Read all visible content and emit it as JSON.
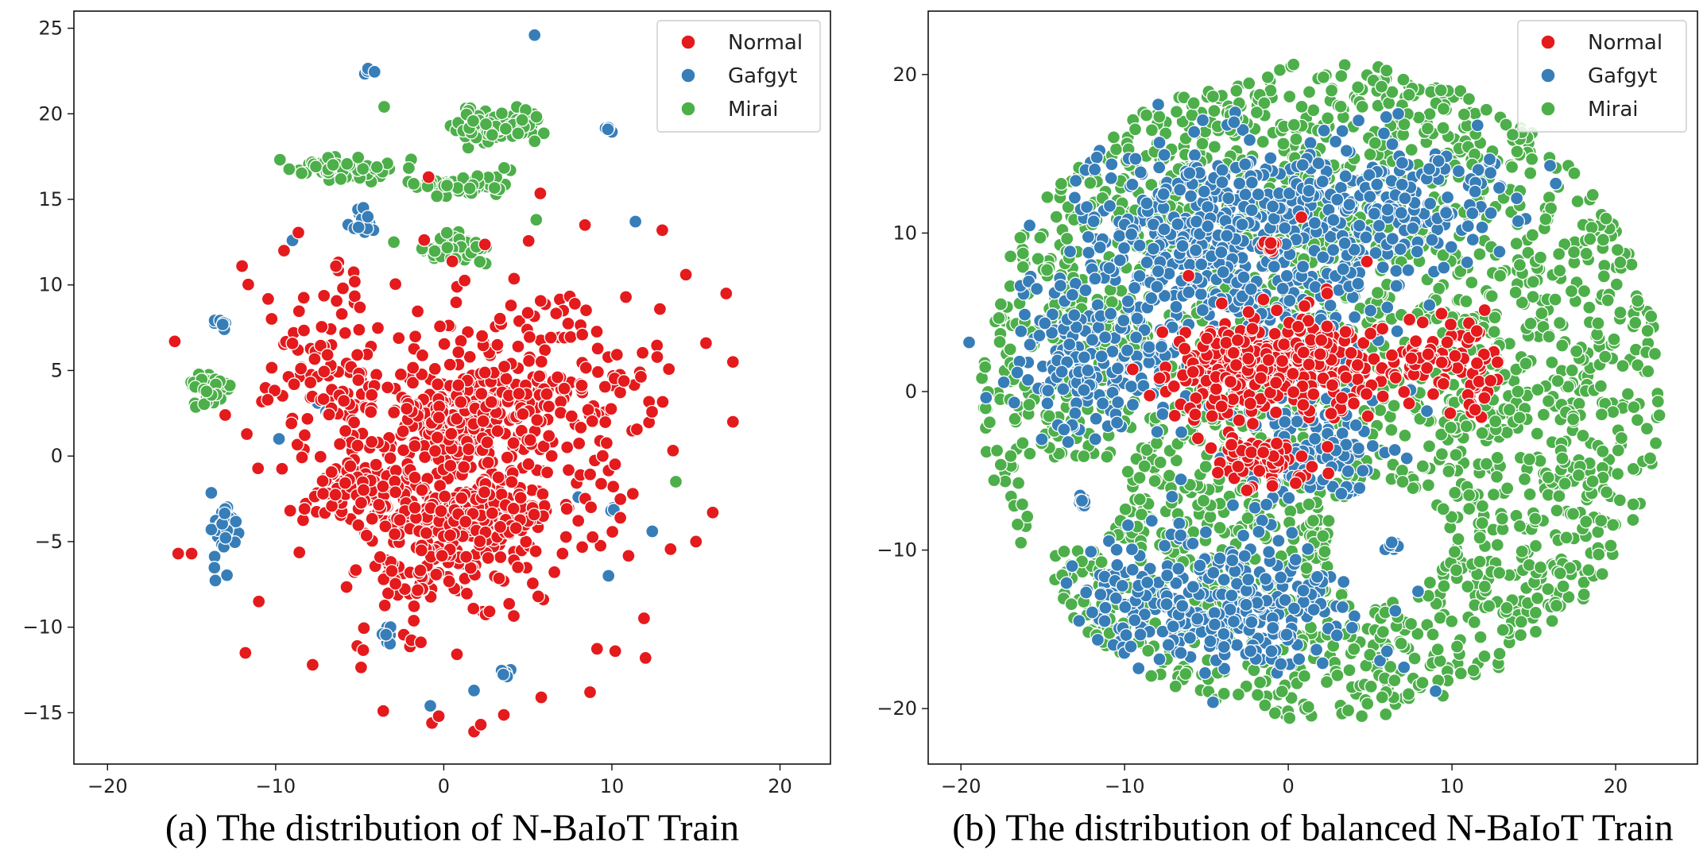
{
  "colors": {
    "Normal": "#e41a1c",
    "Gafgyt": "#377eb8",
    "Mirai": "#4daf4a"
  },
  "chart_data": [
    {
      "type": "scatter",
      "title": "",
      "caption": "(a) The distribution of N-BaIoT Train",
      "xlabel": "",
      "ylabel": "",
      "xlim": [
        -22,
        23
      ],
      "ylim": [
        -18,
        26
      ],
      "xticks": [
        -20,
        -10,
        0,
        10,
        20
      ],
      "yticks": [
        -15,
        -10,
        -5,
        0,
        5,
        10,
        15,
        20,
        25
      ],
      "legend": {
        "position": "top-right",
        "entries": [
          "Normal",
          "Gafgyt",
          "Mirai"
        ]
      },
      "seed": 11,
      "series": [
        {
          "name": "Mirai",
          "color": "#4daf4a",
          "clusters": [
            {
              "cx": 3.0,
              "cy": 19.3,
              "rx": 2.2,
              "ry": 0.9,
              "n": 130
            },
            {
              "cx": -6.0,
              "cy": 16.8,
              "rx": 2.8,
              "ry": 0.6,
              "n": 70
            },
            {
              "cx": 1.0,
              "cy": 15.8,
              "rx": 2.5,
              "ry": 0.6,
              "n": 70
            },
            {
              "cx": 0.5,
              "cy": 12.0,
              "rx": 2.0,
              "ry": 0.7,
              "n": 70
            },
            {
              "cx": -14.0,
              "cy": 4.0,
              "rx": 1.0,
              "ry": 1.0,
              "n": 45
            },
            {
              "cx": -3.6,
              "cy": 20.4,
              "rx": 0.1,
              "ry": 0.1,
              "n": 1
            },
            {
              "cx": 5.5,
              "cy": 13.8,
              "rx": 0.1,
              "ry": 0.1,
              "n": 1
            },
            {
              "cx": 13.8,
              "cy": -1.5,
              "rx": 0.1,
              "ry": 0.1,
              "n": 1
            },
            {
              "cx": 6.0,
              "cy": -0.9,
              "rx": 0.1,
              "ry": 0.1,
              "n": 1
            }
          ],
          "points": []
        },
        {
          "name": "Gafgyt",
          "color": "#377eb8",
          "clusters": [
            {
              "cx": -4.5,
              "cy": 22.5,
              "rx": 0.3,
              "ry": 0.2,
              "n": 5
            },
            {
              "cx": 9.8,
              "cy": 19.2,
              "rx": 0.3,
              "ry": 0.2,
              "n": 5
            },
            {
              "cx": -5.0,
              "cy": 13.8,
              "rx": 0.8,
              "ry": 0.8,
              "n": 16
            },
            {
              "cx": -13.3,
              "cy": 7.8,
              "rx": 0.6,
              "ry": 0.3,
              "n": 7
            },
            {
              "cx": -13.0,
              "cy": -4.0,
              "rx": 0.8,
              "ry": 2.7,
              "n": 30
            },
            {
              "cx": -3.3,
              "cy": -10.6,
              "rx": 0.5,
              "ry": 0.6,
              "n": 8
            },
            {
              "cx": 3.8,
              "cy": -12.6,
              "rx": 0.6,
              "ry": 0.3,
              "n": 6
            },
            {
              "cx": 10.0,
              "cy": -3.0,
              "rx": 0.3,
              "ry": 0.5,
              "n": 3
            }
          ],
          "points": [
            {
              "x": 5.4,
              "y": 24.6
            },
            {
              "x": 11.4,
              "y": 13.7
            },
            {
              "x": -9.0,
              "y": 12.6
            },
            {
              "x": -7.5,
              "y": 3.1
            },
            {
              "x": -7.0,
              "y": 2.6
            },
            {
              "x": -9.8,
              "y": 1.0
            },
            {
              "x": 1.8,
              "y": -13.7
            },
            {
              "x": -0.8,
              "y": -14.6
            },
            {
              "x": 12.4,
              "y": -4.4
            },
            {
              "x": 2.8,
              "y": -1.0
            },
            {
              "x": 9.8,
              "y": -7.0
            },
            {
              "x": 8.0,
              "y": -2.4
            }
          ]
        },
        {
          "name": "Normal",
          "color": "#e41a1c",
          "clusters": [
            {
              "cx": 1.0,
              "cy": 0.5,
              "rx": 9.5,
              "ry": 10.0,
              "n": 420
            },
            {
              "cx": 0.6,
              "cy": 2.0,
              "rx": 2.6,
              "ry": 1.7,
              "n": 190
            },
            {
              "cx": 1.0,
              "cy": -3.5,
              "rx": 5.0,
              "ry": 1.6,
              "n": 190
            },
            {
              "cx": 4.0,
              "cy": 3.5,
              "rx": 2.6,
              "ry": 2.0,
              "n": 70
            },
            {
              "cx": -5.0,
              "cy": -2.0,
              "rx": 3.0,
              "ry": 1.6,
              "n": 80
            },
            {
              "cx": -1.0,
              "cy": -6.5,
              "rx": 4.5,
              "ry": 1.8,
              "n": 60
            },
            {
              "cx": 9.0,
              "cy": 4.0,
              "rx": 5.5,
              "ry": 6.0,
              "n": 70
            },
            {
              "cx": -7.0,
              "cy": 5.0,
              "rx": 4.0,
              "ry": 6.0,
              "n": 90
            }
          ],
          "points": [
            {
              "x": -16.0,
              "y": 6.7
            },
            {
              "x": -15.8,
              "y": -5.7
            },
            {
              "x": -15.0,
              "y": -5.7
            },
            {
              "x": 17.2,
              "y": 5.5
            },
            {
              "x": 17.2,
              "y": 2.0
            },
            {
              "x": 16.8,
              "y": 9.5
            },
            {
              "x": 16.0,
              "y": -3.3
            },
            {
              "x": 15.6,
              "y": 6.6
            },
            {
              "x": 1.8,
              "y": -16.1
            },
            {
              "x": 2.2,
              "y": -15.7
            },
            {
              "x": -0.7,
              "y": -15.6
            },
            {
              "x": -0.3,
              "y": -15.2
            },
            {
              "x": -3.6,
              "y": -14.9
            },
            {
              "x": 5.8,
              "y": -14.1
            },
            {
              "x": 8.7,
              "y": -13.8
            },
            {
              "x": -12.0,
              "y": 11.1
            },
            {
              "x": 12.0,
              "y": -11.8
            },
            {
              "x": -11.8,
              "y": -11.5
            },
            {
              "x": 14.4,
              "y": 10.6
            },
            {
              "x": 15.0,
              "y": -5.0
            },
            {
              "x": -13.0,
              "y": 2.4
            },
            {
              "x": 8.4,
              "y": 13.5
            },
            {
              "x": -9.5,
              "y": 12.0
            },
            {
              "x": 13.0,
              "y": 13.2
            },
            {
              "x": 4.0,
              "y": 8.8
            },
            {
              "x": -6.0,
              "y": 9.8
            },
            {
              "x": 7.8,
              "y": 8.9
            },
            {
              "x": -11.0,
              "y": -8.5
            },
            {
              "x": 10.2,
              "y": -11.4
            },
            {
              "x": -7.8,
              "y": -12.2
            }
          ]
        }
      ]
    },
    {
      "type": "scatter",
      "title": "",
      "caption": "(b) The distribution of balanced N-BaIoT Train",
      "xlabel": "",
      "ylabel": "",
      "xlim": [
        -22,
        25
      ],
      "ylim": [
        -23.5,
        24
      ],
      "xticks": [
        -20,
        -10,
        0,
        10,
        20
      ],
      "yticks": [
        -20,
        -10,
        0,
        10,
        20
      ],
      "legend": {
        "position": "top-right",
        "entries": [
          "Normal",
          "Gafgyt",
          "Mirai"
        ]
      },
      "seed": 29,
      "disk": {
        "cx": 2.0,
        "cy": 0.0,
        "r": 20.8,
        "holes": [
          {
            "cx": -13.0,
            "cy": -7.0,
            "r": 2.9
          },
          {
            "cx": 6.0,
            "cy": -9.5,
            "r": 3.6
          }
        ]
      },
      "series": [
        {
          "name": "Mirai",
          "color": "#4daf4a",
          "disk_fill": 2300,
          "clusters": [],
          "points": []
        },
        {
          "name": "Gafgyt",
          "color": "#377eb8",
          "clusters": [
            {
              "cx": -4.0,
              "cy": 9.0,
              "rx": 11.0,
              "ry": 7.0,
              "n": 520
            },
            {
              "cx": -5.0,
              "cy": -13.5,
              "rx": 10.0,
              "ry": 4.5,
              "n": 330
            },
            {
              "cx": 7.0,
              "cy": 12.0,
              "rx": 7.0,
              "ry": 4.0,
              "n": 170
            },
            {
              "cx": -12.0,
              "cy": 2.0,
              "rx": 5.5,
              "ry": 5.0,
              "n": 160
            },
            {
              "cx": 1.5,
              "cy": -3.0,
              "rx": 5.0,
              "ry": 4.5,
              "n": 130
            },
            {
              "cx": -12.6,
              "cy": -6.9,
              "rx": 0.4,
              "ry": 0.4,
              "n": 8
            },
            {
              "cx": 6.4,
              "cy": -9.8,
              "rx": 0.4,
              "ry": 0.4,
              "n": 8
            }
          ],
          "points": [
            {
              "x": -4.6,
              "y": -19.6
            },
            {
              "x": 9.0,
              "y": -18.9
            },
            {
              "x": -19.5,
              "y": 3.1
            }
          ]
        },
        {
          "name": "Normal",
          "color": "#e41a1c",
          "clusters": [
            {
              "cx": -2.5,
              "cy": 1.5,
              "rx": 4.5,
              "ry": 3.2,
              "n": 260
            },
            {
              "cx": 2.5,
              "cy": 2.0,
              "rx": 3.0,
              "ry": 3.5,
              "n": 110
            },
            {
              "cx": -1.5,
              "cy": -4.5,
              "rx": 3.0,
              "ry": 2.0,
              "n": 70
            },
            {
              "cx": 11.0,
              "cy": 1.5,
              "rx": 2.4,
              "ry": 3.0,
              "n": 60
            },
            {
              "cx": -1.2,
              "cy": 9.2,
              "rx": 0.6,
              "ry": 0.4,
              "n": 12
            },
            {
              "cx": 7.5,
              "cy": 2.0,
              "rx": 2.0,
              "ry": 2.0,
              "n": 35
            }
          ],
          "points": [
            {
              "x": 4.8,
              "y": 8.2
            },
            {
              "x": 0.8,
              "y": 11.0
            },
            {
              "x": -9.5,
              "y": 1.4
            }
          ]
        }
      ]
    }
  ]
}
